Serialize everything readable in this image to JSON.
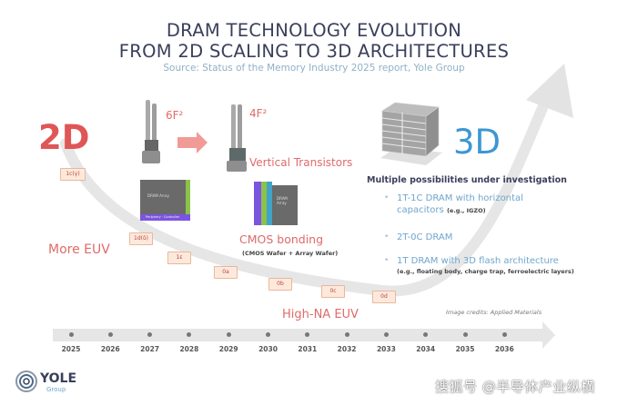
{
  "header": {
    "title_line1": "DRAM TECHNOLOGY EVOLUTION",
    "title_line2": "FROM 2D SCALING TO 3D ARCHITECTURES",
    "subtitle": "Source: Status of the Memory Industry 2025 report, Yole Group"
  },
  "left": {
    "label_2d": "2D",
    "more_euv": "More EUV",
    "cell_6f2": "6F²",
    "cell_4f2": "4F²",
    "vertical_transistors": "Vertical Transistors",
    "cmos_bonding": "CMOS bonding",
    "cmos_bonding_note": "(CMOS Wafer + Array Wafer)",
    "high_na_euv": "High-NA EUV",
    "chip_left_label": "DRAM Array",
    "chip_left_bottom": "Periphery · Controller",
    "chip_right_label": "DRAM Array"
  },
  "nodes": [
    "1c(γ)",
    "1d(δ)",
    "1ε",
    "0a",
    "0b",
    "0c",
    "0d"
  ],
  "right": {
    "label_3d": "3D",
    "heading": "Multiple possibilities under investigation",
    "bullets": [
      {
        "main": "1T-1C DRAM with horizontal",
        "main2": "capacitors",
        "note": "(e.g., IGZO)"
      },
      {
        "main": "2T-0C DRAM",
        "main2": "",
        "note": ""
      },
      {
        "main": "1T DRAM with 3D flash architecture",
        "main2": "",
        "note": "(e.g., floating body, charge trap, ferroelectric layers)"
      }
    ],
    "credits": "Image credits: Applied Materials"
  },
  "timeline": {
    "years": [
      "2025",
      "2026",
      "2027",
      "2028",
      "2029",
      "2030",
      "2031",
      "2032",
      "2033",
      "2034",
      "2035",
      "2036"
    ]
  },
  "footer": {
    "logo_text": "YOLE",
    "logo_sub": "Group",
    "watermark": "搜狐号 @半导体产业纵横"
  },
  "colors": {
    "title": "#3a3f5c",
    "accent_red": "#e05656",
    "accent_blue": "#3c97d3",
    "tag_bg": "#fde9dc"
  }
}
